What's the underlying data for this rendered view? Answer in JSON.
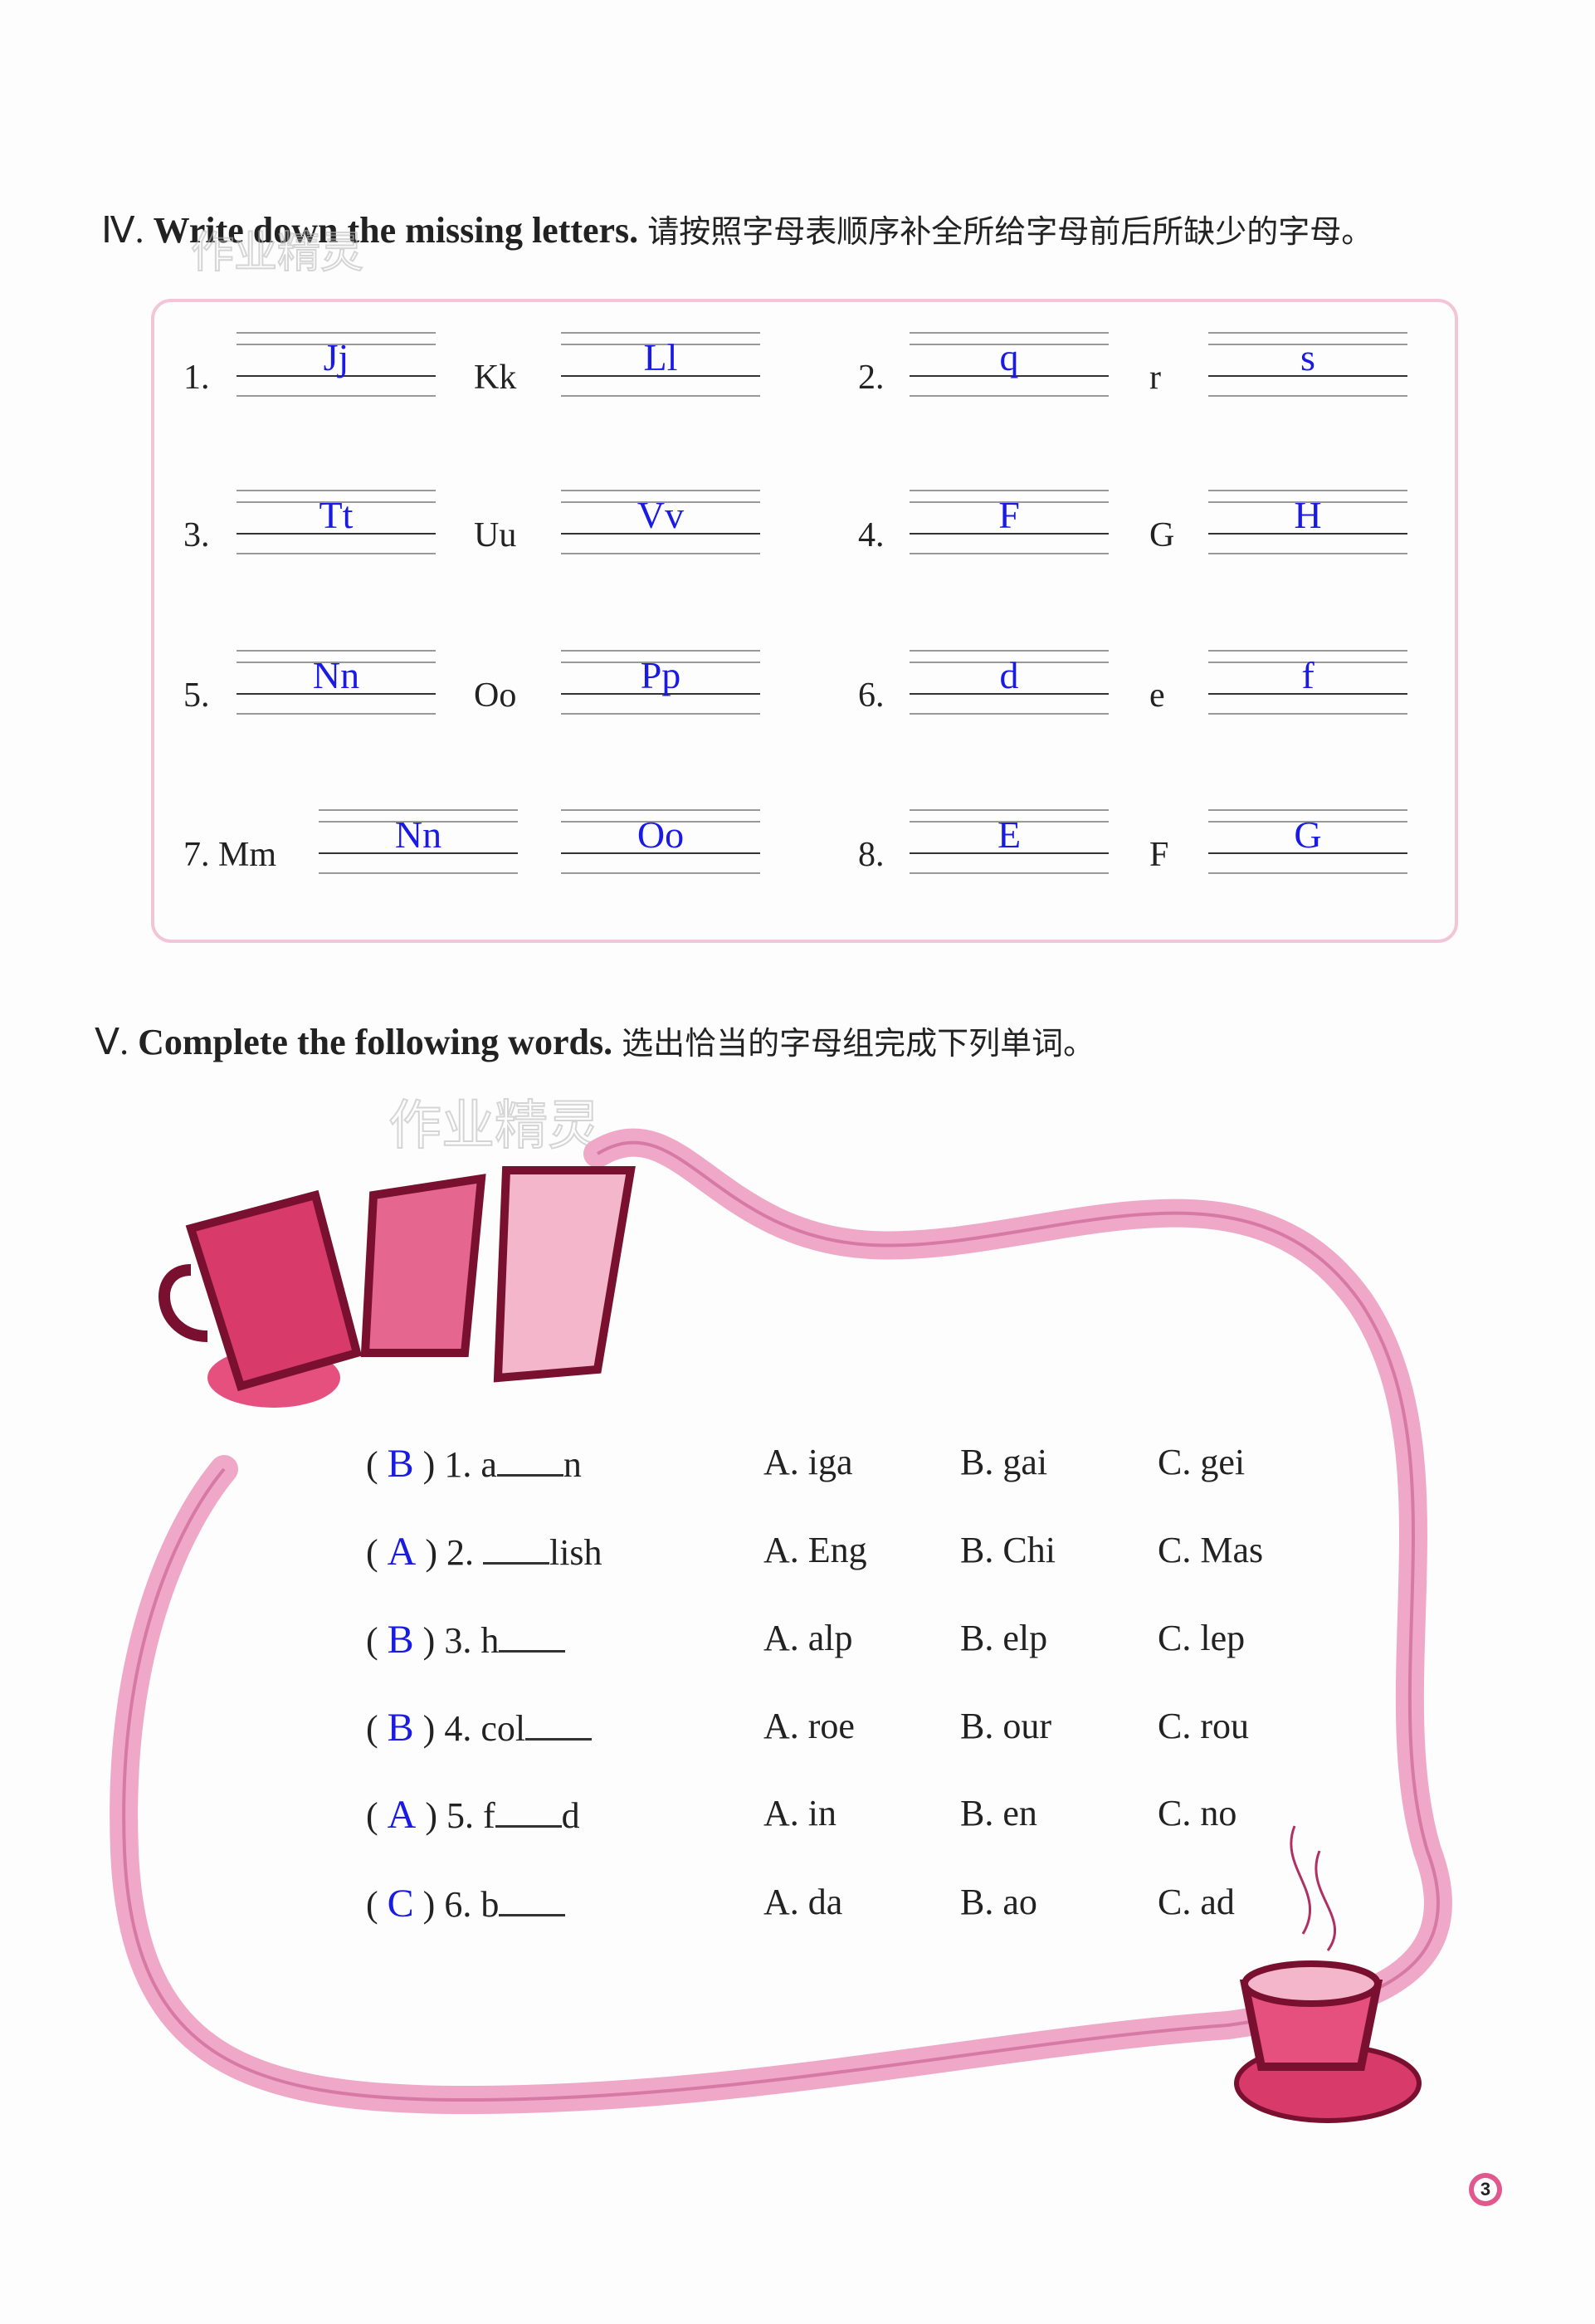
{
  "section4": {
    "numeral": "Ⅳ.",
    "title": "Write down the missing letters.",
    "instruction": "请按照字母表顺序补全所给字母前后所缺少的字母。",
    "items": [
      {
        "num": "1.",
        "given": "Kk",
        "before": "Jj",
        "after": "Ll"
      },
      {
        "num": "2.",
        "given": "r",
        "before": "q",
        "after": "s"
      },
      {
        "num": "3.",
        "given": "Uu",
        "before": "Tt",
        "after": "Vv"
      },
      {
        "num": "4.",
        "given": "G",
        "before": "F",
        "after": "H"
      },
      {
        "num": "5.",
        "given": "Oo",
        "before": "Nn",
        "after": "Pp"
      },
      {
        "num": "6.",
        "given": "e",
        "before": "d",
        "after": "f"
      },
      {
        "num": "7. Mm",
        "given": "",
        "before": "Nn",
        "after": "Oo"
      },
      {
        "num": "8.",
        "given": "F",
        "before": "E",
        "after": "G"
      }
    ]
  },
  "section5": {
    "numeral": "Ⅴ.",
    "title": "Complete the following words.",
    "instruction": "选出恰当的字母组完成下列单词。",
    "items": [
      {
        "answer": "B",
        "pre": "1. a",
        "post": "n",
        "a": "A. iga",
        "b": "B. gai",
        "c": "C. gei"
      },
      {
        "answer": "A",
        "pre": "2. ",
        "post": "lish",
        "a": "A. Eng",
        "b": "B. Chi",
        "c": "C. Mas"
      },
      {
        "answer": "B",
        "pre": "3. h",
        "post": "",
        "a": "A. alp",
        "b": "B. elp",
        "c": "C. lep"
      },
      {
        "answer": "B",
        "pre": "4. col",
        "post": "",
        "a": "A. roe",
        "b": "B. our",
        "c": "C. rou"
      },
      {
        "answer": "A",
        "pre": "5. f",
        "post": "d",
        "a": "A. in",
        "b": "B. en",
        "c": "C. no"
      },
      {
        "answer": "C",
        "pre": "6. b",
        "post": "",
        "a": "A. da",
        "b": "B. ao",
        "c": "C. ad"
      }
    ]
  },
  "watermark": "作业精灵",
  "page_number": "3",
  "colors": {
    "answer": "#1a1ae6",
    "ribbon": "#f0a8c8",
    "cup": "#c8305e"
  }
}
